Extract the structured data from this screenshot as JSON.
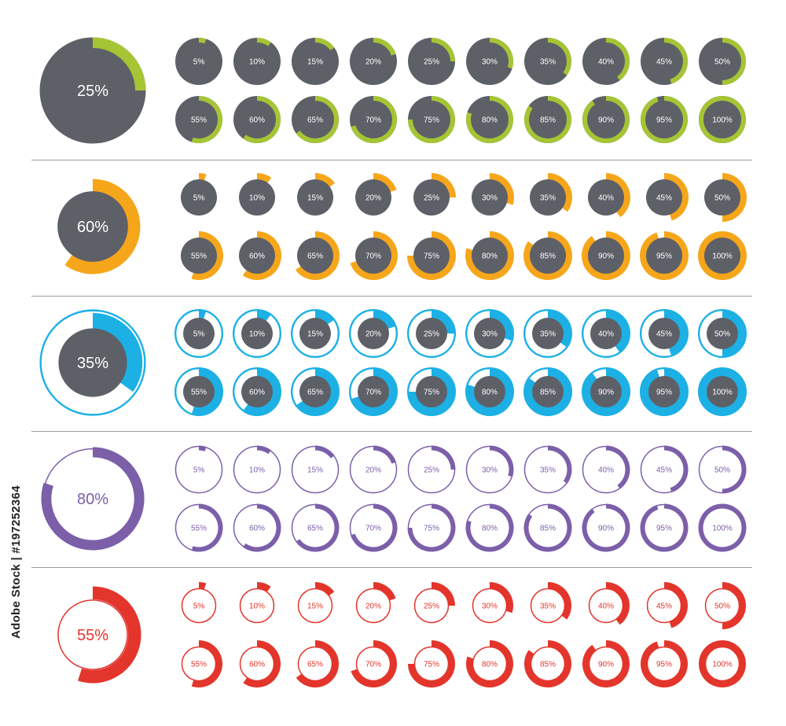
{
  "gray": "#5e6068",
  "light_track": "#ffffff",
  "percent_labels": [
    "5%",
    "10%",
    "15%",
    "20%",
    "25%",
    "30%",
    "35%",
    "40%",
    "45%",
    "50%",
    "55%",
    "60%",
    "65%",
    "70%",
    "75%",
    "80%",
    "85%",
    "90%",
    "95%",
    "100%"
  ],
  "percent_values": [
    5,
    10,
    15,
    20,
    25,
    30,
    35,
    40,
    45,
    50,
    55,
    60,
    65,
    70,
    75,
    80,
    85,
    90,
    95,
    100
  ],
  "rows": [
    {
      "style": "pie",
      "accent": "#a5c534",
      "hero_label": "25%",
      "hero_value": 25,
      "icon": "green-pie-chart-icon"
    },
    {
      "style": "offset-arc",
      "accent": "#f6a61a",
      "hero_label": "60%",
      "hero_value": 60,
      "icon": "orange-arc-chart-icon"
    },
    {
      "style": "blue-ring",
      "accent": "#1cb0e5",
      "hero_label": "35%",
      "hero_value": 35,
      "icon": "blue-ring-chart-icon"
    },
    {
      "style": "outline-ring",
      "accent": "#7c5fa9",
      "hero_label": "80%",
      "hero_value": 80,
      "icon": "purple-ring-chart-icon"
    },
    {
      "style": "offset-outline",
      "accent": "#e3352b",
      "hero_label": "55%",
      "hero_value": 55,
      "icon": "red-arc-chart-icon"
    }
  ],
  "watermark": {
    "text": "Adobe Stock | #197252364"
  }
}
